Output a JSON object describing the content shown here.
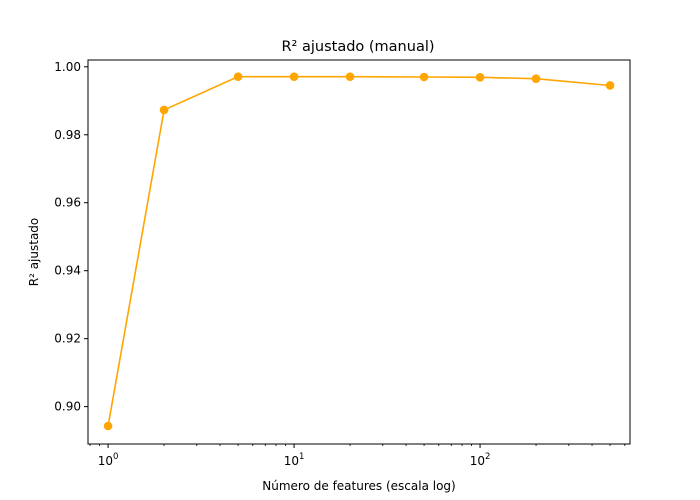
{
  "chart_data": {
    "type": "line",
    "title": "R² ajustado (manual)",
    "xlabel": "Número de features (escala log)",
    "ylabel": "R² ajustado",
    "x_scale": "log",
    "xlim": [
      0.78,
      640
    ],
    "ylim": [
      0.889,
      1.002
    ],
    "x_ticks": [
      {
        "value": 1,
        "base": "10",
        "exp": "0"
      },
      {
        "value": 10,
        "base": "10",
        "exp": "1"
      },
      {
        "value": 100,
        "base": "10",
        "exp": "2"
      }
    ],
    "y_ticks": [
      {
        "value": 0.9,
        "label": "0.90"
      },
      {
        "value": 0.92,
        "label": "0.92"
      },
      {
        "value": 0.94,
        "label": "0.94"
      },
      {
        "value": 0.96,
        "label": "0.96"
      },
      {
        "value": 0.98,
        "label": "0.98"
      },
      {
        "value": 1.0,
        "label": "1.00"
      }
    ],
    "grid": false,
    "legend": "none",
    "color": "#FFA500",
    "series": [
      {
        "x": [
          1,
          2,
          5,
          10,
          20,
          50,
          100,
          200,
          500
        ],
        "y": [
          0.8943,
          0.9873,
          0.9971,
          0.9971,
          0.9971,
          0.997,
          0.9969,
          0.9965,
          0.9945
        ]
      }
    ]
  }
}
